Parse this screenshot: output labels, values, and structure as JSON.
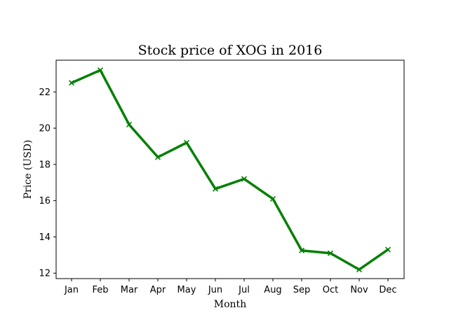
{
  "chart_data": {
    "type": "line",
    "title": "Stock price of XOG in 2016",
    "xlabel": "Month",
    "ylabel": "Price (USD)",
    "categories": [
      "Jan",
      "Feb",
      "Mar",
      "Apr",
      "May",
      "Jun",
      "Jul",
      "Aug",
      "Sep",
      "Oct",
      "Nov",
      "Dec"
    ],
    "series": [
      {
        "values": [
          22.5,
          23.2,
          20.2,
          18.4,
          19.2,
          16.65,
          17.2,
          16.1,
          13.25,
          13.1,
          12.2,
          13.3
        ],
        "color": "#008000",
        "marker": "x"
      }
    ],
    "ylim": [
      11.7,
      23.75
    ],
    "yticks": [
      12,
      14,
      16,
      18,
      20,
      22
    ],
    "grid": false,
    "legend": "none"
  }
}
